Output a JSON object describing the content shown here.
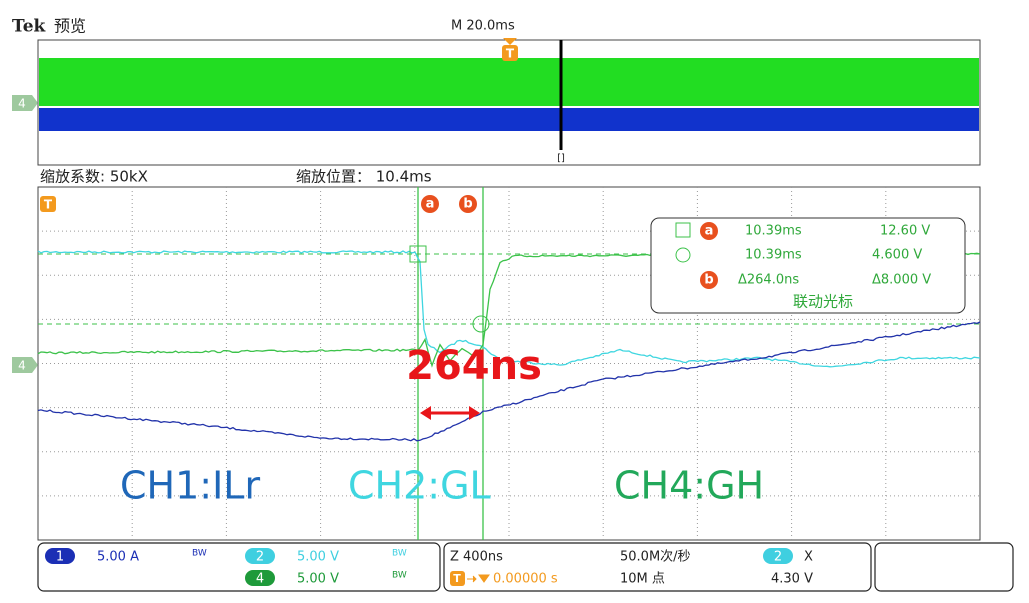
{
  "header": {
    "brand": "Tek",
    "mode": "预览",
    "timebase": "M 20.0ms",
    "trigger_marker": "T",
    "zoom_marker": "[]",
    "ch4_marker": "4"
  },
  "zoom": {
    "factor": "缩放系数: 50kX",
    "position": "缩放位置： 10.4ms"
  },
  "display": {
    "trigger_marker": "T",
    "ch4_marker": "4",
    "cursor_a": "a",
    "cursor_b": "b"
  },
  "cursor_readout": {
    "a_label": "a",
    "a_time": "10.39ms",
    "a_value": "12.60 V",
    "b_time": "10.39ms",
    "b_value": "4.600 V",
    "b_label": "b",
    "delta_time": "Δ264.0ns",
    "delta_value": "Δ8.000 V",
    "mode": "联动光标"
  },
  "annotations": {
    "delay": "264ns",
    "ch1": "CH1:ILr",
    "ch2": "CH2:GL",
    "ch4": "CH4:GH"
  },
  "status_bar": {
    "channels": [
      {
        "number": "1",
        "scale": "5.00 A",
        "bandwidth": "BW"
      },
      {
        "number": "2",
        "scale": "5.00 V",
        "bandwidth": "BW"
      },
      {
        "number": "4",
        "scale": "5.00 V",
        "bandwidth": "BW"
      }
    ],
    "zoom_scale": "Z 400ns",
    "sample_rate": "50.0M次/秒",
    "trigger_icon": "T",
    "trigger_position": "0.00000 s",
    "record_length": "10M 点",
    "trigger_source": "2",
    "trigger_slope": "X",
    "trigger_level": "4.30 V"
  }
}
